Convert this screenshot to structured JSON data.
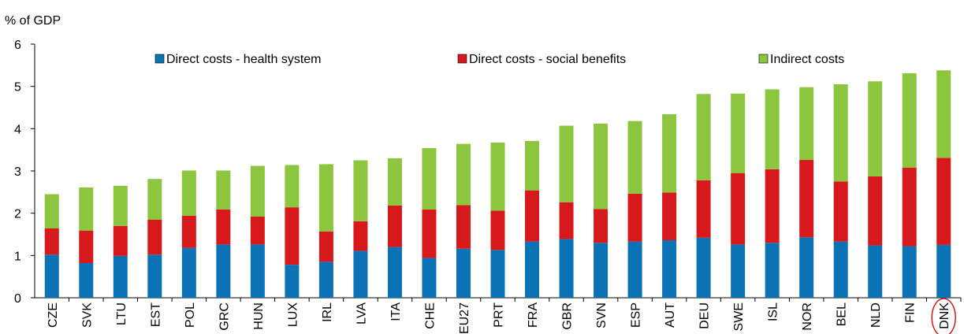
{
  "chart_data": {
    "type": "bar",
    "stacked": true,
    "ylabel": "% of GDP",
    "ylim": [
      0,
      6
    ],
    "yticks": [
      "0",
      "1",
      "2",
      "3",
      "4",
      "5",
      "6"
    ],
    "grid": false,
    "legend_position": "top",
    "categories": [
      "CZE",
      "SVK",
      "LTU",
      "EST",
      "POL",
      "GRC",
      "HUN",
      "LUX",
      "IRL",
      "LVA",
      "ITA",
      "CHE",
      "EU27",
      "PRT",
      "FRA",
      "GBR",
      "SVN",
      "ESP",
      "AUT",
      "DEU",
      "SWE",
      "ISL",
      "NOR",
      "BEL",
      "NLD",
      "FIN",
      "DNK"
    ],
    "highlighted_category": "DNK",
    "series": [
      {
        "name": "Direct costs - health system",
        "color": "#0b72b5",
        "values": [
          1.02,
          0.82,
          0.99,
          1.02,
          1.18,
          1.26,
          1.26,
          0.78,
          0.85,
          1.11,
          1.2,
          0.94,
          1.16,
          1.13,
          1.33,
          1.39,
          1.3,
          1.33,
          1.36,
          1.42,
          1.26,
          1.3,
          1.43,
          1.33,
          1.24,
          1.22,
          1.25
        ]
      },
      {
        "name": "Direct costs - social benefits",
        "color": "#d7191c",
        "values": [
          0.62,
          0.77,
          0.71,
          0.83,
          0.76,
          0.83,
          0.66,
          1.36,
          0.72,
          0.7,
          0.98,
          1.15,
          1.03,
          0.93,
          1.21,
          0.87,
          0.8,
          1.13,
          1.13,
          1.36,
          1.69,
          1.74,
          1.83,
          1.42,
          1.63,
          1.86,
          2.06
        ]
      },
      {
        "name": "Indirect costs",
        "color": "#8cc63f",
        "values": [
          0.81,
          1.02,
          0.95,
          0.96,
          1.07,
          0.92,
          1.2,
          1.0,
          1.59,
          1.44,
          1.12,
          1.45,
          1.45,
          1.61,
          1.17,
          1.81,
          2.02,
          1.72,
          1.85,
          2.04,
          1.88,
          1.89,
          1.72,
          2.3,
          2.25,
          2.23,
          2.07
        ]
      }
    ]
  }
}
